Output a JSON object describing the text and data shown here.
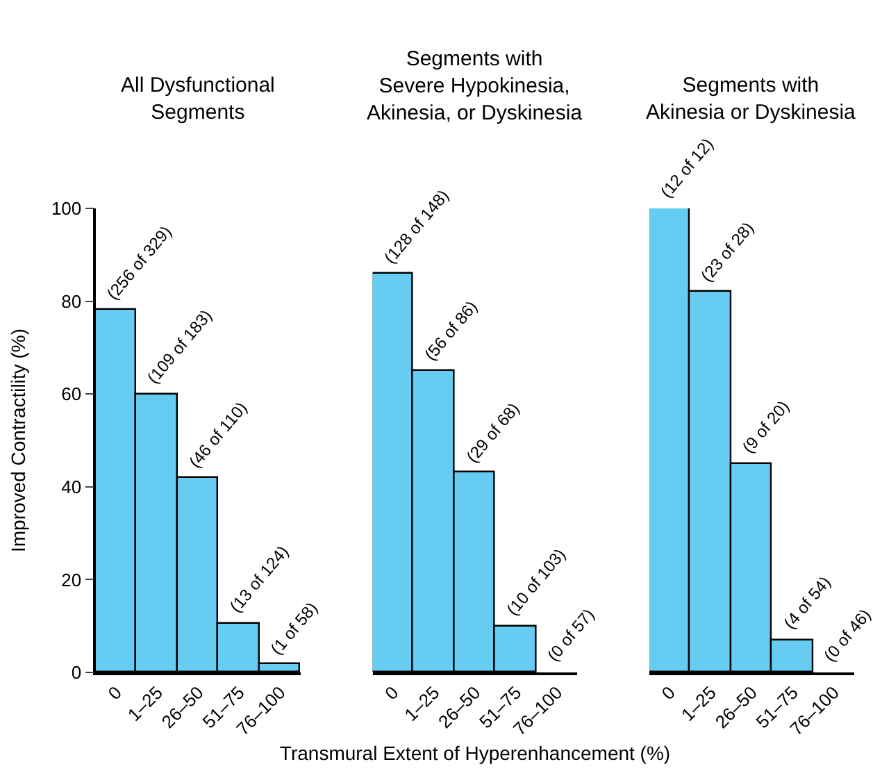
{
  "chart_data": [
    {
      "type": "bar",
      "title": "All Dysfunctional\nSegments",
      "ylabel": "Improved Contractility (%)",
      "categories": [
        "0",
        "1–25",
        "26–50",
        "51–75",
        "76–100"
      ],
      "values": [
        78,
        60,
        42,
        10.5,
        1.7
      ],
      "value_labels": [
        "(256 of 329)",
        "(109 of 183)",
        "(46 of 110)",
        "(13 of 124)",
        "(1 of 58)"
      ],
      "color": "#66ccf2",
      "ylim": [
        0,
        100
      ],
      "yticks": [
        0,
        20,
        40,
        60,
        80,
        100
      ]
    },
    {
      "type": "bar",
      "title": "Segments with\nSevere Hypokinesia,\nAkinesia, or Dyskinesia",
      "xlabel": "Transmural Extent of Hyperenhancement (%)",
      "categories": [
        "0",
        "1–25",
        "26–50",
        "51–75",
        "76–100"
      ],
      "values": [
        86,
        65,
        43,
        10,
        0
      ],
      "value_labels": [
        "(128 of 148)",
        "(56 of 86)",
        "(29 of 68)",
        "(10 of 103)",
        "(0 of 57)"
      ],
      "color": "#66ccf2",
      "ylim": [
        0,
        100
      ],
      "tick_labels": "x"
    },
    {
      "type": "bar",
      "title": "Segments with\nAkinesia or Dyskinesia",
      "categories": [
        "0",
        "1–25",
        "26–50",
        "51–75",
        "76–100"
      ],
      "values": [
        100,
        82,
        45,
        7,
        0
      ],
      "value_labels": [
        "(12 of 12)",
        "(23 of 28)",
        "(9 of 20)",
        "(4 of 54)",
        "(0 of 46)"
      ],
      "color": "#66ccf2",
      "ylim": [
        0,
        100
      ],
      "tick_labels": "x"
    }
  ]
}
